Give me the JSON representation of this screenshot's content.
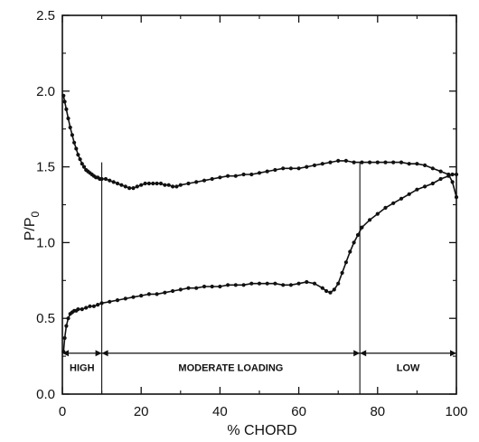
{
  "chart_data": {
    "type": "line",
    "xlabel": "% CHORD",
    "ylabel_main": "P/P",
    "ylabel_sub": "0",
    "xlim": [
      0,
      100
    ],
    "ylim": [
      0,
      2.5
    ],
    "xticks": [
      0,
      20,
      40,
      60,
      80,
      100
    ],
    "yticks": [
      0.0,
      0.5,
      1.0,
      1.5,
      2.0,
      2.5
    ],
    "ytick_labels": [
      "0.0",
      "0.5",
      "1.0",
      "1.5",
      "2.0",
      "2.5"
    ],
    "grid": false,
    "series": [
      {
        "x": [
          0.3,
          0.6,
          1,
          1.5,
          2,
          2.5,
          3,
          3.5,
          4,
          4.5,
          5,
          5.5,
          6,
          6.5,
          7,
          7.5,
          8,
          8.5,
          9,
          9.5,
          10,
          11,
          12,
          13,
          14,
          15,
          16,
          17,
          18,
          19,
          20,
          21,
          22,
          23,
          24,
          25,
          26,
          27,
          28,
          29,
          30,
          32,
          34,
          36,
          38,
          40,
          42,
          44,
          46,
          48,
          50,
          52,
          54,
          56,
          58,
          60,
          62,
          64,
          66,
          68,
          70,
          72,
          74,
          76,
          78,
          80,
          82,
          84,
          86,
          88,
          90,
          92,
          94,
          96,
          98,
          99,
          100
        ],
        "values": [
          1.97,
          1.93,
          1.88,
          1.82,
          1.76,
          1.71,
          1.66,
          1.62,
          1.58,
          1.55,
          1.52,
          1.5,
          1.48,
          1.47,
          1.46,
          1.45,
          1.44,
          1.43,
          1.43,
          1.42,
          1.42,
          1.42,
          1.41,
          1.4,
          1.39,
          1.38,
          1.37,
          1.36,
          1.36,
          1.37,
          1.38,
          1.39,
          1.39,
          1.39,
          1.39,
          1.39,
          1.38,
          1.38,
          1.37,
          1.37,
          1.38,
          1.39,
          1.4,
          1.41,
          1.42,
          1.43,
          1.44,
          1.44,
          1.45,
          1.45,
          1.46,
          1.47,
          1.48,
          1.49,
          1.49,
          1.49,
          1.5,
          1.51,
          1.52,
          1.53,
          1.54,
          1.54,
          1.53,
          1.53,
          1.53,
          1.53,
          1.53,
          1.53,
          1.53,
          1.52,
          1.52,
          1.51,
          1.49,
          1.47,
          1.45,
          1.4,
          1.3
        ]
      },
      {
        "x": [
          0.3,
          0.6,
          1,
          1.5,
          2,
          2.5,
          3,
          3.5,
          4,
          5,
          6,
          7,
          8,
          9,
          10,
          12,
          14,
          16,
          18,
          20,
          22,
          24,
          26,
          28,
          30,
          32,
          34,
          36,
          38,
          40,
          42,
          44,
          46,
          48,
          50,
          52,
          54,
          56,
          58,
          60,
          62,
          64,
          66,
          67,
          68,
          69,
          70,
          71,
          72,
          73,
          74,
          75,
          76,
          78,
          80,
          82,
          84,
          86,
          88,
          90,
          92,
          94,
          96,
          98,
          99,
          100
        ],
        "values": [
          0.28,
          0.37,
          0.45,
          0.5,
          0.53,
          0.54,
          0.55,
          0.55,
          0.56,
          0.56,
          0.57,
          0.58,
          0.58,
          0.59,
          0.6,
          0.61,
          0.62,
          0.63,
          0.64,
          0.65,
          0.66,
          0.66,
          0.67,
          0.68,
          0.69,
          0.7,
          0.7,
          0.71,
          0.71,
          0.71,
          0.72,
          0.72,
          0.72,
          0.73,
          0.73,
          0.73,
          0.73,
          0.72,
          0.72,
          0.73,
          0.74,
          0.73,
          0.7,
          0.68,
          0.67,
          0.69,
          0.73,
          0.8,
          0.87,
          0.94,
          1.0,
          1.05,
          1.1,
          1.15,
          1.19,
          1.23,
          1.26,
          1.29,
          1.32,
          1.35,
          1.37,
          1.39,
          1.42,
          1.44,
          1.45,
          1.45
        ]
      }
    ],
    "vlines": [
      10,
      75.5
    ],
    "regions": [
      {
        "label": "HIGH",
        "from": 0,
        "to": 10
      },
      {
        "label": "MODERATE LOADING",
        "from": 10,
        "to": 75.5
      },
      {
        "label": "LOW",
        "from": 75.5,
        "to": 100
      }
    ],
    "region_arrow_y": 0.27
  }
}
